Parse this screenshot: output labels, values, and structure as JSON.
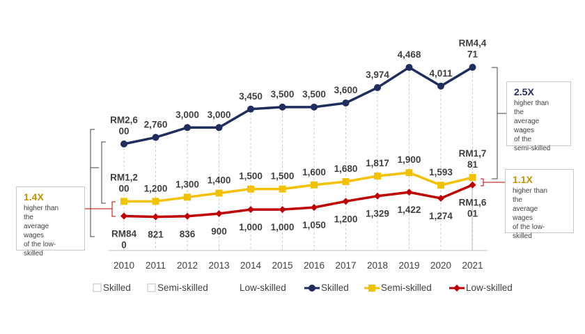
{
  "chart_data": {
    "type": "line",
    "categories": [
      "2010",
      "2011",
      "2012",
      "2013",
      "2014",
      "2015",
      "2016",
      "2017",
      "2018",
      "2019",
      "2020",
      "2021"
    ],
    "series": [
      {
        "name": "Skilled",
        "color": "#1f2e5e",
        "marker": "circle",
        "values": [
          2600,
          2760,
          3000,
          3000,
          3450,
          3500,
          3500,
          3600,
          3974,
          4468,
          4011,
          4471
        ],
        "labels": [
          "RM2,6\n00",
          "2,760",
          "3,000",
          "3,000",
          "3,450",
          "3,500",
          "3,500",
          "3,600",
          "3,974",
          "4,468",
          "4,011",
          "RM4,4\n71"
        ]
      },
      {
        "name": "Semi-skilled",
        "color": "#f2c200",
        "marker": "square",
        "values": [
          1200,
          1200,
          1300,
          1400,
          1500,
          1500,
          1600,
          1680,
          1817,
          1900,
          1593,
          1781
        ],
        "labels": [
          "RM1,2\n00",
          "1,200",
          "1,300",
          "1,400",
          "1,500",
          "1,500",
          "1,600",
          "1,680",
          "1,817",
          "1,900",
          "1,593",
          "RM1,7\n81"
        ]
      },
      {
        "name": "Low-skilled",
        "color": "#c00000",
        "marker": "diamond",
        "values": [
          840,
          821,
          836,
          900,
          1000,
          1000,
          1050,
          1200,
          1329,
          1422,
          1274,
          1601
        ],
        "labels": [
          "RM84\n0",
          "821",
          "836",
          "900",
          "1,000",
          "1,000",
          "1,050",
          "1,200",
          "1,329",
          "1,422",
          "1,274",
          "RM1,6\n01"
        ]
      }
    ],
    "legend_ghost": [
      "Skilled",
      "Semi-skilled",
      "Low-skilled"
    ],
    "legend_position": "bottom",
    "title": "",
    "xlabel": "",
    "ylabel": "",
    "ylim": [
      0,
      5000
    ],
    "grid": false
  },
  "annotations": {
    "skilled_vs_semi": {
      "ratio": "2.5X",
      "text": "higher than\nthe\naverage\nwages\nof the\nsemi-skilled"
    },
    "semi_vs_low": {
      "ratio": "1.1X",
      "text": "higher than\nthe\naverage\nwages\nof the low-\nskilled"
    },
    "skilled_vs_low": {
      "ratio": "1.4X",
      "text": "higher than\nthe\naverage\nwages\nof the low-\nskilled"
    }
  },
  "colors": {
    "axis": "#bfbfbf",
    "text": "#404040",
    "bracket": "#404040",
    "bracket_red": "#c00000"
  }
}
